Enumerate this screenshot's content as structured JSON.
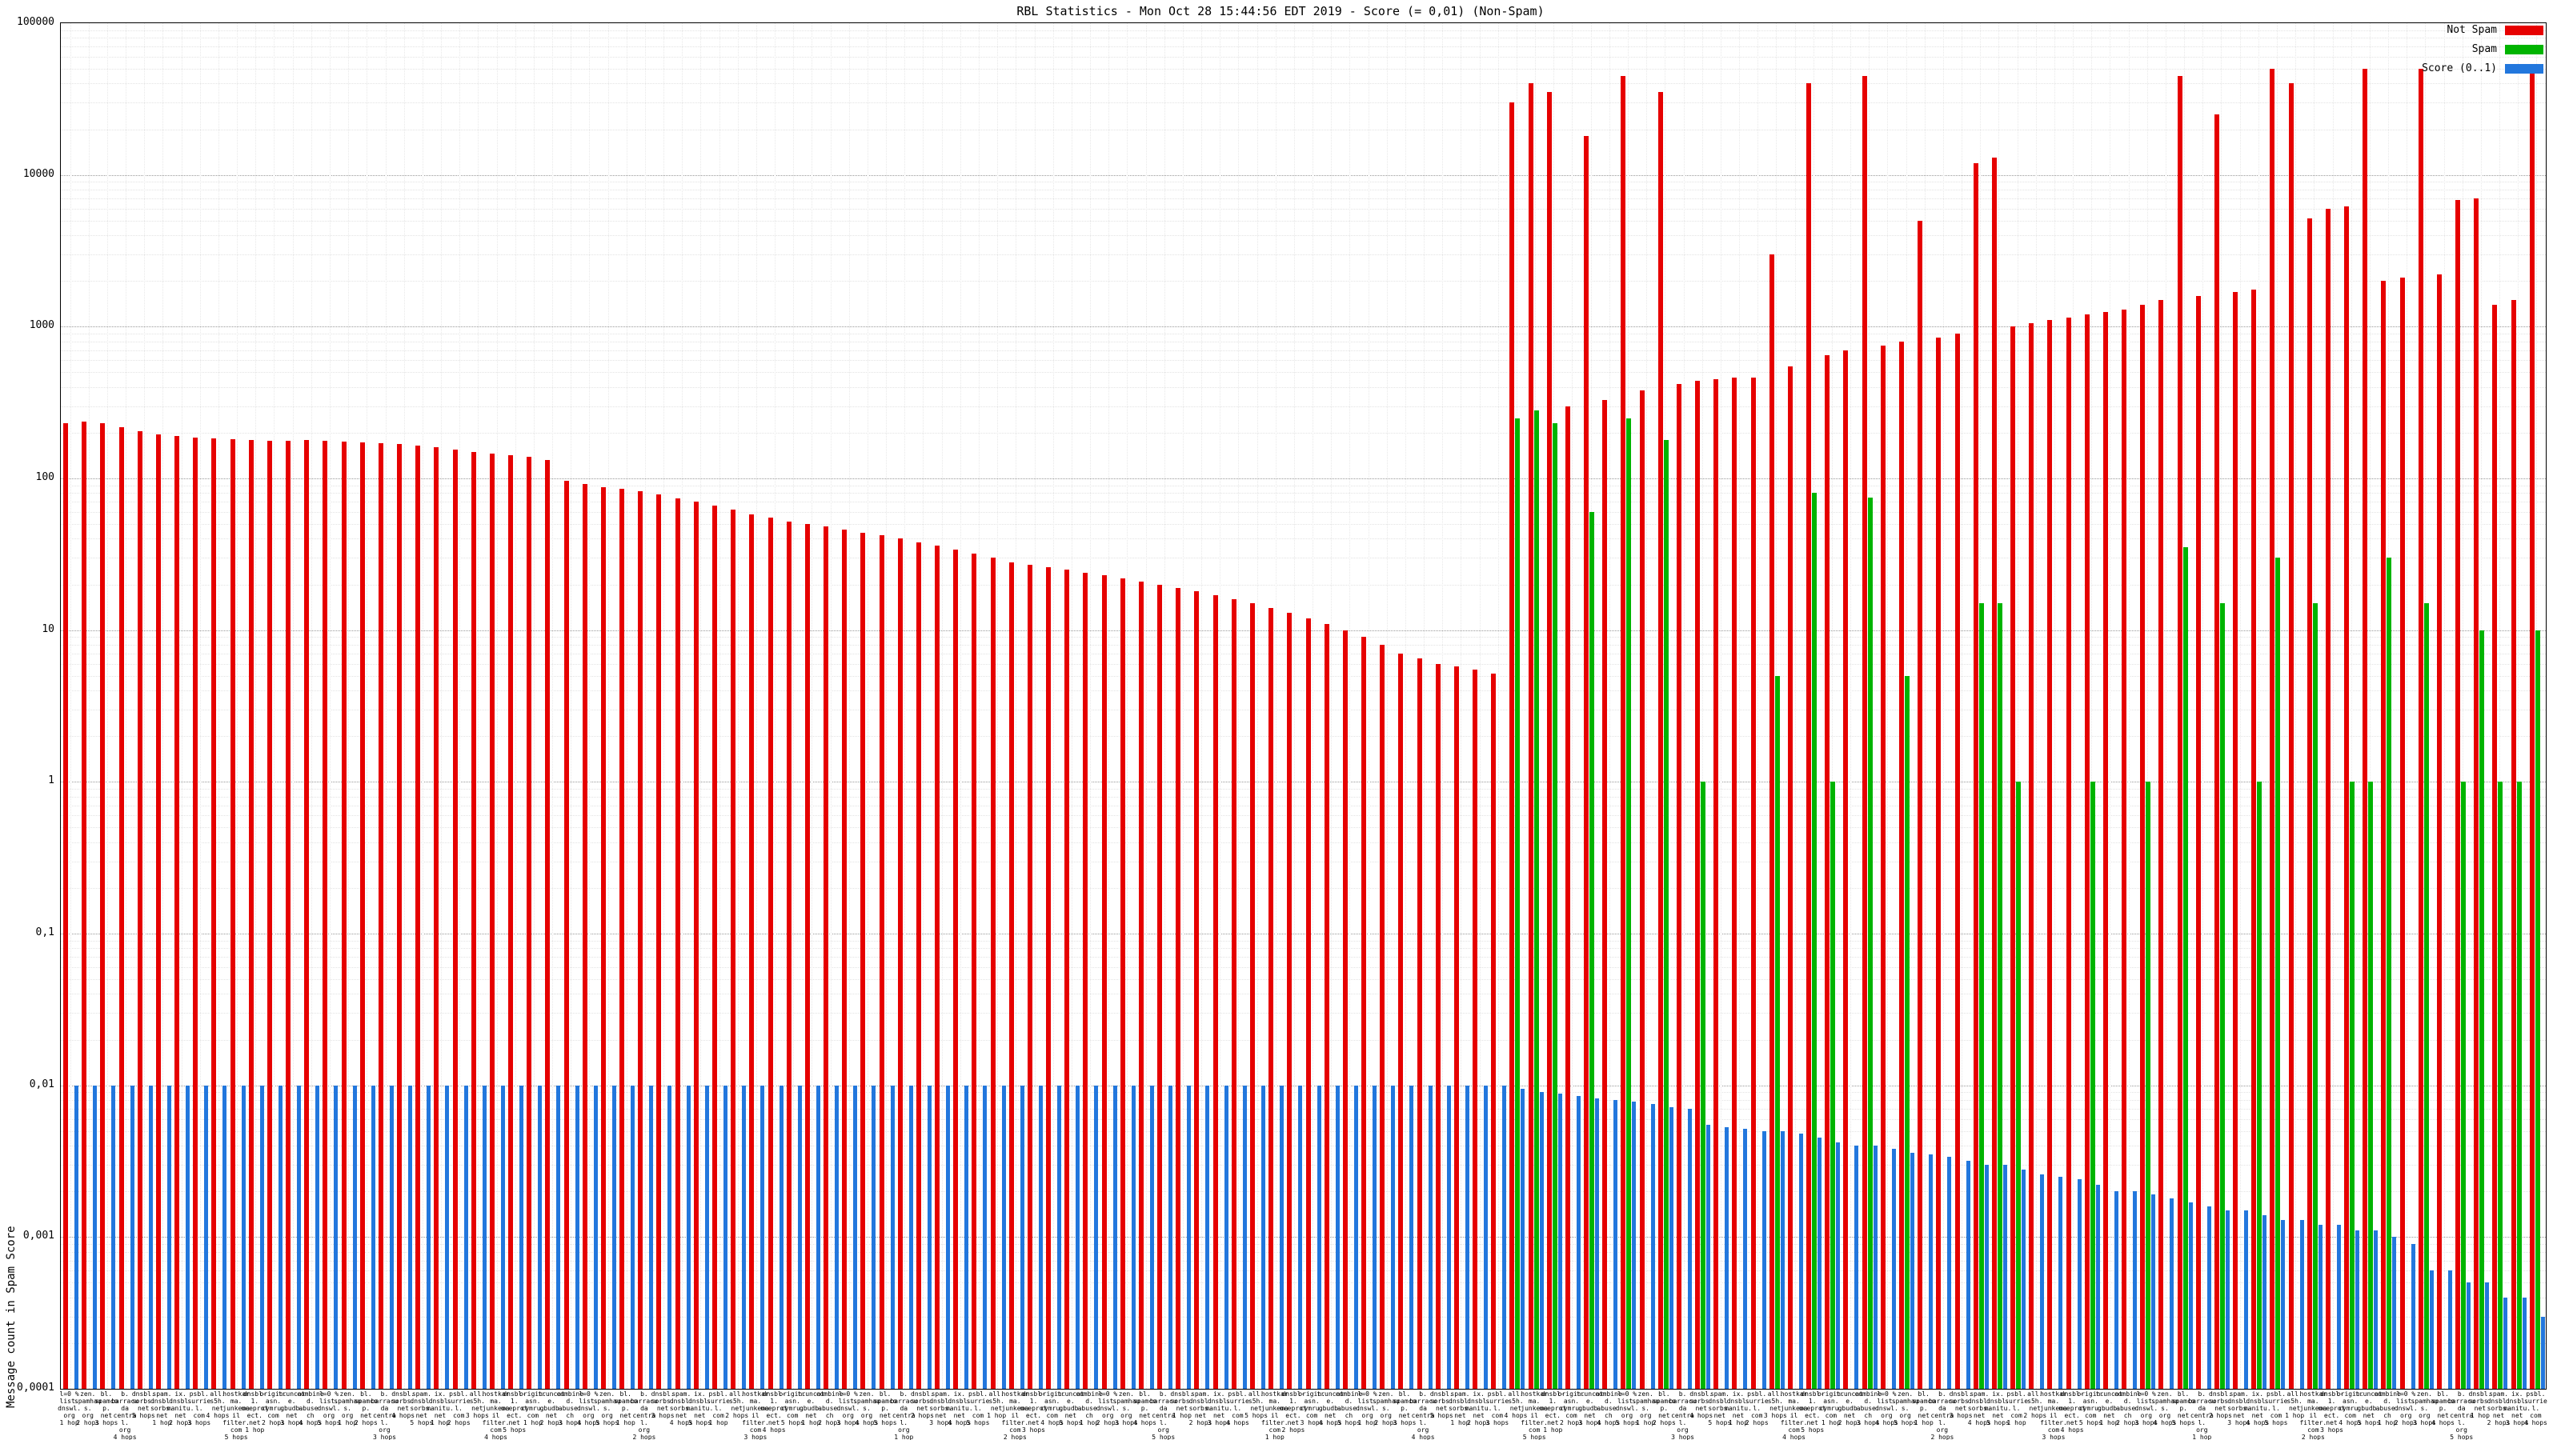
{
  "title": "RBL Statistics - Mon Oct 28 15:44:56 EDT 2019 - Score (= 0,01) (Non-Spam)",
  "y_axis": {
    "title": "Message count in Spam Score",
    "ticks": [
      "100000",
      "10000",
      "1000",
      "100",
      "10",
      "1",
      "0,1",
      "0,01",
      "0,001",
      "0,0001"
    ]
  },
  "legend": {
    "items": [
      {
        "label": "Not Spam",
        "color": "#e60000"
      },
      {
        "label": "Spam",
        "color": "#00b400"
      },
      {
        "label": "Score (0..1)",
        "color": "#2277dd"
      }
    ]
  },
  "chart_data": {
    "type": "bar",
    "scale": "log",
    "ylim": [
      0.0001,
      100000
    ],
    "grid": true,
    "legend_position": "top-right",
    "x_label_names": [
      "l=0 %\nlist.\ndnswl.\norg",
      "zen.\nspamhaus.\norg",
      "bl.\nspamcop.\nnet",
      "b.\nbarracuda\ncentral.\norg",
      "dnsbl.\nsorbs.\nnet",
      "spam.\ndnsbl.\nsorbs.\nnet",
      "ix.\ndnsbl.\nmanitu.\nnet",
      "psbl.\nsurriel.\ncom",
      "all.\ns5h.\nnet",
      "hostkarma.\njunkemail\nfilter.\ncom",
      "dnsbl-1.\nuceprotect.\nnet",
      "origin.\nasn.\ncymru.\ncom",
      "truncate.\ngbudb.\nnet",
      "combined.\nabuse.\nch"
    ],
    "x_label_hops": [
      "1 hop",
      "2 hops",
      "3 hops",
      "4 hops",
      "5 hops"
    ],
    "series": [
      {
        "name": "Not Spam",
        "color": "#e60000",
        "values": [
          230,
          238,
          232,
          218,
          205,
          196,
          190,
          186,
          184,
          182,
          180,
          178,
          176,
          180,
          178,
          175,
          172,
          170,
          168,
          165,
          160,
          155,
          150,
          146,
          142,
          138,
          132,
          96,
          92,
          88,
          85,
          82,
          78,
          74,
          70,
          66,
          62,
          58,
          55,
          52,
          50,
          48,
          46,
          44,
          42,
          40,
          38,
          36,
          34,
          32,
          30,
          28,
          27,
          26,
          25,
          24,
          23,
          22,
          21,
          20,
          19,
          18,
          17,
          16,
          15,
          14,
          13,
          12,
          11,
          10,
          9,
          8,
          7,
          6.5,
          6,
          5.8,
          5.5,
          5.2,
          30000,
          40000,
          35000,
          300,
          18000,
          330,
          45000,
          380,
          35000,
          420,
          440,
          450,
          460,
          460,
          3000,
          550,
          40000,
          650,
          700,
          45000,
          750,
          800,
          5000,
          850,
          900,
          12000,
          13000,
          1000,
          1050,
          1100,
          1150,
          1200,
          1250,
          1300,
          1400,
          1500,
          45000,
          1600,
          25000,
          1700,
          1750,
          50000,
          40000,
          5200,
          6000,
          6200,
          50000,
          2000,
          2100,
          50000,
          2200,
          6800,
          7000,
          1400,
          1500,
          52000
        ]
      },
      {
        "name": "Spam",
        "color": "#00b400",
        "values": [
          0,
          0,
          0,
          0,
          0,
          0,
          0,
          0,
          0,
          0,
          0,
          0,
          0,
          0,
          0,
          0,
          0,
          0,
          0,
          0,
          0,
          0,
          0,
          0,
          0,
          0,
          0,
          0,
          0,
          0,
          0,
          0,
          0,
          0,
          0,
          0,
          0,
          0,
          0,
          0,
          0,
          0,
          0,
          0,
          0,
          0,
          0,
          0,
          0,
          0,
          0,
          0,
          0,
          0,
          0,
          0,
          0,
          0,
          0,
          0,
          0,
          0,
          0,
          0,
          0,
          0,
          0,
          0,
          0,
          0,
          0,
          0,
          0,
          0,
          0,
          0,
          0,
          0,
          250,
          280,
          230,
          0,
          60,
          0,
          250,
          0,
          180,
          0,
          1,
          0,
          0,
          0,
          5,
          0,
          80,
          1,
          0,
          75,
          0,
          5,
          0,
          0,
          0,
          15,
          15,
          1,
          0,
          0,
          0,
          1,
          0,
          0,
          1,
          0,
          35,
          0,
          15,
          0,
          1,
          30,
          0,
          15,
          0,
          1,
          1,
          30,
          0,
          15,
          0,
          1,
          10,
          1,
          1,
          10
        ]
      },
      {
        "name": "Score (0..1)",
        "color": "#2277dd",
        "values": [
          0.01,
          0.01,
          0.01,
          0.01,
          0.01,
          0.01,
          0.01,
          0.01,
          0.01,
          0.01,
          0.01,
          0.01,
          0.01,
          0.01,
          0.01,
          0.01,
          0.01,
          0.01,
          0.01,
          0.01,
          0.01,
          0.01,
          0.01,
          0.01,
          0.01,
          0.01,
          0.01,
          0.01,
          0.01,
          0.01,
          0.01,
          0.01,
          0.01,
          0.01,
          0.01,
          0.01,
          0.01,
          0.01,
          0.01,
          0.01,
          0.01,
          0.01,
          0.01,
          0.01,
          0.01,
          0.01,
          0.01,
          0.01,
          0.01,
          0.01,
          0.01,
          0.01,
          0.01,
          0.01,
          0.01,
          0.01,
          0.01,
          0.01,
          0.01,
          0.01,
          0.01,
          0.01,
          0.01,
          0.01,
          0.01,
          0.01,
          0.01,
          0.01,
          0.01,
          0.01,
          0.01,
          0.01,
          0.01,
          0.01,
          0.01,
          0.01,
          0.01,
          0.01,
          0.0095,
          0.009,
          0.0088,
          0.0085,
          0.0082,
          0.008,
          0.0078,
          0.0075,
          0.0072,
          0.007,
          0.0055,
          0.0053,
          0.0052,
          0.005,
          0.005,
          0.0048,
          0.0045,
          0.0042,
          0.004,
          0.004,
          0.0038,
          0.0036,
          0.0035,
          0.0034,
          0.0032,
          0.003,
          0.003,
          0.0028,
          0.0026,
          0.0025,
          0.0024,
          0.0022,
          0.002,
          0.002,
          0.0019,
          0.0018,
          0.0017,
          0.0016,
          0.0015,
          0.0015,
          0.0014,
          0.0013,
          0.0013,
          0.0012,
          0.0012,
          0.0011,
          0.0011,
          0.001,
          0.0009,
          0.0006,
          0.0006,
          0.0005,
          0.0005,
          0.0004,
          0.0004,
          0.0003
        ]
      }
    ]
  }
}
